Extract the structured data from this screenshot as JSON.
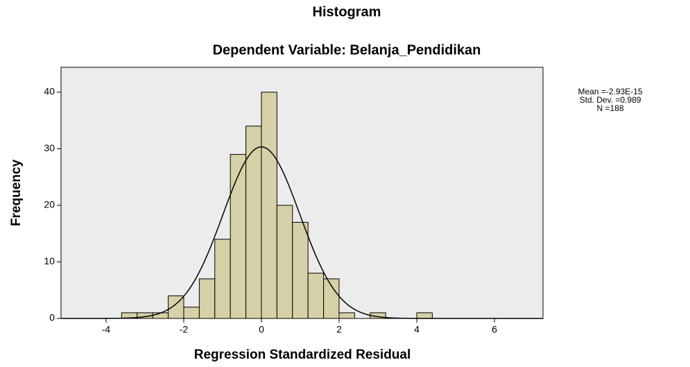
{
  "chart_data": {
    "type": "histogram",
    "title": "Histogram",
    "subtitle": "Dependent Variable: Belanja_Pendidikan",
    "x_label": "Regression Standardized Residual",
    "y_label": "Frequency",
    "bins": [
      -3.6,
      -3.2,
      -2.8,
      -2.4,
      -2.0,
      -1.6,
      -1.2,
      -0.8,
      -0.4,
      0,
      0.4,
      0.8,
      1.2,
      1.6,
      2.0,
      2.4,
      2.8,
      3.2,
      3.6,
      4.0,
      4.4
    ],
    "values": [
      1,
      1,
      1,
      4,
      2,
      7,
      14,
      29,
      34,
      40,
      20,
      17,
      8,
      7,
      1,
      0,
      1,
      0,
      0,
      1
    ],
    "color": "#d6d1a6",
    "background": "#ececec",
    "xlim": [
      -5.16,
      7.25
    ],
    "ylim": [
      0,
      44.4
    ],
    "xticks": [
      -4,
      -2,
      0,
      2,
      4,
      6
    ],
    "yticks": [
      0,
      10,
      20,
      30,
      40
    ],
    "normal_curve": true,
    "stats": [
      {
        "value": -2.93e-15,
        "label": "Mean =-2.93E-15"
      },
      {
        "value": 0.989,
        "label": "Std. Dev. =0.989"
      },
      {
        "value": 188,
        "label": "N =188"
      }
    ]
  }
}
